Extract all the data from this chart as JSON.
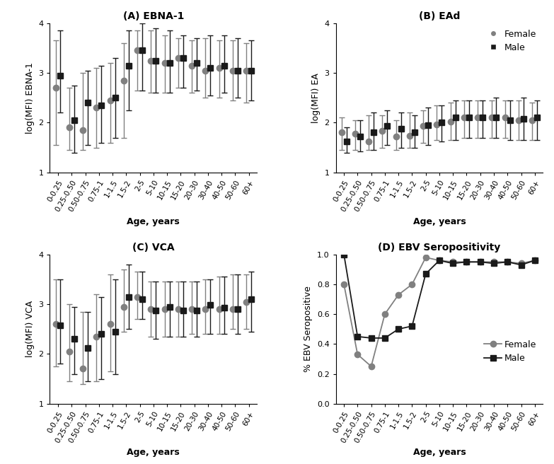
{
  "age_labels": [
    "0-0.25",
    "0.25-0.50",
    "0.50-0.75",
    "0.75-1",
    "1-1.5",
    "1.5-2",
    "2-5",
    "5-10",
    "10-15",
    "15-20",
    "20-30",
    "30-40",
    "40-50",
    "50-60",
    "60+"
  ],
  "panel_A": {
    "title": "(A) EBNA-1",
    "ylabel": "log(MFI) EBNA-1",
    "ylim": [
      1,
      4
    ],
    "yticks": [
      1,
      2,
      3,
      4
    ],
    "female_median": [
      2.7,
      1.9,
      1.85,
      2.3,
      2.45,
      2.85,
      3.45,
      3.25,
      3.2,
      3.3,
      3.15,
      3.05,
      3.1,
      3.05,
      3.05
    ],
    "female_lo": [
      1.55,
      1.45,
      1.45,
      1.5,
      1.6,
      1.7,
      2.65,
      2.6,
      2.6,
      2.7,
      2.6,
      2.5,
      2.5,
      2.45,
      2.4
    ],
    "female_hi": [
      3.65,
      2.7,
      3.0,
      3.1,
      3.2,
      3.6,
      3.85,
      3.85,
      3.75,
      3.7,
      3.65,
      3.7,
      3.65,
      3.65,
      3.6
    ],
    "male_median": [
      2.95,
      2.05,
      2.4,
      2.35,
      2.5,
      3.15,
      3.45,
      3.25,
      3.2,
      3.3,
      3.2,
      3.1,
      3.15,
      3.05,
      3.05
    ],
    "male_lo": [
      2.2,
      1.4,
      1.55,
      1.6,
      1.7,
      2.25,
      2.65,
      2.6,
      2.6,
      2.7,
      2.65,
      2.55,
      2.6,
      2.5,
      2.45
    ],
    "male_hi": [
      3.85,
      2.75,
      3.05,
      3.15,
      3.3,
      3.85,
      4.0,
      3.9,
      3.85,
      3.75,
      3.7,
      3.75,
      3.75,
      3.7,
      3.65
    ]
  },
  "panel_B": {
    "title": "(B) EAd",
    "ylabel": "log(MFI) EA",
    "ylim": [
      1,
      4
    ],
    "yticks": [
      1,
      2,
      3,
      4
    ],
    "female_median": [
      1.8,
      1.78,
      1.62,
      1.83,
      1.72,
      1.73,
      1.93,
      1.97,
      2.02,
      2.1,
      2.1,
      2.1,
      2.1,
      2.05,
      2.05
    ],
    "female_lo": [
      1.45,
      1.45,
      1.45,
      1.5,
      1.45,
      1.5,
      1.6,
      1.65,
      1.65,
      1.7,
      1.7,
      1.7,
      1.7,
      1.65,
      1.65
    ],
    "female_hi": [
      2.1,
      2.05,
      2.15,
      2.15,
      2.05,
      2.2,
      2.25,
      2.35,
      2.4,
      2.45,
      2.45,
      2.45,
      2.45,
      2.45,
      2.4
    ],
    "male_median": [
      1.62,
      1.72,
      1.8,
      1.93,
      1.88,
      1.8,
      1.95,
      2.0,
      2.1,
      2.1,
      2.1,
      2.1,
      2.05,
      2.08,
      2.1
    ],
    "male_lo": [
      1.4,
      1.42,
      1.45,
      1.55,
      1.5,
      1.5,
      1.55,
      1.62,
      1.65,
      1.7,
      1.7,
      1.7,
      1.65,
      1.65,
      1.65
    ],
    "male_hi": [
      1.9,
      2.05,
      2.2,
      2.25,
      2.2,
      2.15,
      2.3,
      2.35,
      2.45,
      2.45,
      2.45,
      2.5,
      2.45,
      2.5,
      2.45
    ]
  },
  "panel_C": {
    "title": "(C) VCA",
    "ylabel": "log(MFI) VCA",
    "ylim": [
      1,
      4
    ],
    "yticks": [
      1,
      2,
      3,
      4
    ],
    "female_median": [
      2.6,
      2.05,
      1.7,
      2.35,
      2.6,
      2.95,
      3.15,
      2.9,
      2.9,
      2.9,
      2.9,
      2.9,
      2.9,
      2.9,
      3.05
    ],
    "female_lo": [
      1.75,
      1.45,
      1.4,
      1.45,
      1.65,
      2.45,
      2.7,
      2.35,
      2.35,
      2.35,
      2.4,
      2.4,
      2.4,
      2.5,
      2.5
    ],
    "female_hi": [
      3.5,
      3.0,
      2.85,
      3.2,
      3.6,
      3.7,
      3.65,
      3.45,
      3.45,
      3.45,
      3.45,
      3.5,
      3.55,
      3.6,
      3.6
    ],
    "male_median": [
      2.58,
      2.3,
      2.12,
      2.4,
      2.45,
      3.15,
      3.1,
      2.88,
      2.95,
      2.88,
      2.88,
      2.98,
      2.93,
      2.9,
      3.1
    ],
    "male_lo": [
      1.8,
      1.6,
      1.45,
      1.5,
      1.6,
      2.5,
      2.7,
      2.3,
      2.35,
      2.35,
      2.35,
      2.4,
      2.4,
      2.4,
      2.45
    ],
    "male_hi": [
      3.5,
      2.95,
      2.85,
      3.15,
      3.5,
      3.8,
      3.65,
      3.45,
      3.45,
      3.45,
      3.45,
      3.5,
      3.55,
      3.6,
      3.65
    ]
  },
  "panel_D": {
    "title": "(D) EBV Seropositivity",
    "ylabel": "% EBV Seropositive",
    "ylim": [
      0,
      1.0
    ],
    "yticks": [
      0.0,
      0.2,
      0.4,
      0.6,
      0.8,
      1.0
    ],
    "female_values": [
      0.8,
      0.33,
      0.25,
      0.6,
      0.73,
      0.8,
      0.98,
      0.96,
      0.95,
      0.95,
      0.95,
      0.95,
      0.95,
      0.94,
      0.96
    ],
    "male_values": [
      1.0,
      0.45,
      0.44,
      0.44,
      0.5,
      0.52,
      0.87,
      0.96,
      0.94,
      0.95,
      0.95,
      0.94,
      0.95,
      0.93,
      0.96
    ]
  },
  "female_color": "#808080",
  "male_color": "#1a1a1a",
  "marker_size": 6,
  "capsize": 3,
  "xlabel": "Age, years"
}
